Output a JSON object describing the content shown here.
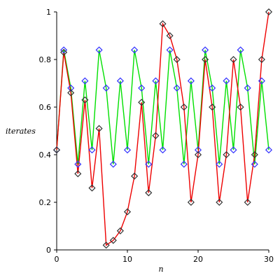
{
  "chart_data": {
    "type": "line",
    "xlabel": "n",
    "ylabel": "iterates",
    "xlim": [
      0,
      30
    ],
    "ylim": [
      0,
      1
    ],
    "x_ticks": [
      0,
      10,
      20,
      30
    ],
    "y_ticks": [
      0,
      0.2,
      0.4,
      0.6,
      0.8,
      1
    ],
    "x_tick_labels": [
      "0",
      "10",
      "20",
      "30"
    ],
    "y_tick_labels": [
      "0",
      "0.2",
      "0.4",
      "0.6",
      "0.8",
      "1"
    ],
    "grid": false,
    "legend": "none",
    "series": [
      {
        "color": "#00e000",
        "marker": "diamond",
        "marker_color": "#3333ff",
        "x": [
          0,
          1,
          2,
          3,
          4,
          5,
          6,
          7,
          8,
          9,
          10,
          11,
          12,
          13,
          14,
          15,
          16,
          17,
          18,
          19,
          20,
          21,
          22,
          23,
          24,
          25,
          26,
          27,
          28,
          29,
          30
        ],
        "y": [
          0.42,
          0.84,
          0.68,
          0.36,
          0.71,
          0.42,
          0.84,
          0.68,
          0.36,
          0.71,
          0.42,
          0.84,
          0.68,
          0.36,
          0.71,
          0.42,
          0.84,
          0.68,
          0.36,
          0.71,
          0.42,
          0.84,
          0.68,
          0.36,
          0.71,
          0.42,
          0.84,
          0.68,
          0.36,
          0.71,
          0.42
        ]
      },
      {
        "color": "#ee0000",
        "marker": "diamond",
        "marker_color": "#333333",
        "x": [
          0,
          1,
          2,
          3,
          4,
          5,
          6,
          7,
          8,
          9,
          10,
          11,
          12,
          13,
          14,
          15,
          16,
          17,
          18,
          19,
          20,
          21,
          22,
          23,
          24,
          25,
          26,
          27,
          28,
          29,
          30
        ],
        "y": [
          0.42,
          0.83,
          0.66,
          0.32,
          0.63,
          0.26,
          0.51,
          0.02,
          0.04,
          0.08,
          0.16,
          0.31,
          0.62,
          0.24,
          0.48,
          0.95,
          0.9,
          0.8,
          0.6,
          0.2,
          0.4,
          0.8,
          0.6,
          0.2,
          0.4,
          0.8,
          0.6,
          0.2,
          0.4,
          0.8,
          1.0
        ]
      }
    ]
  }
}
